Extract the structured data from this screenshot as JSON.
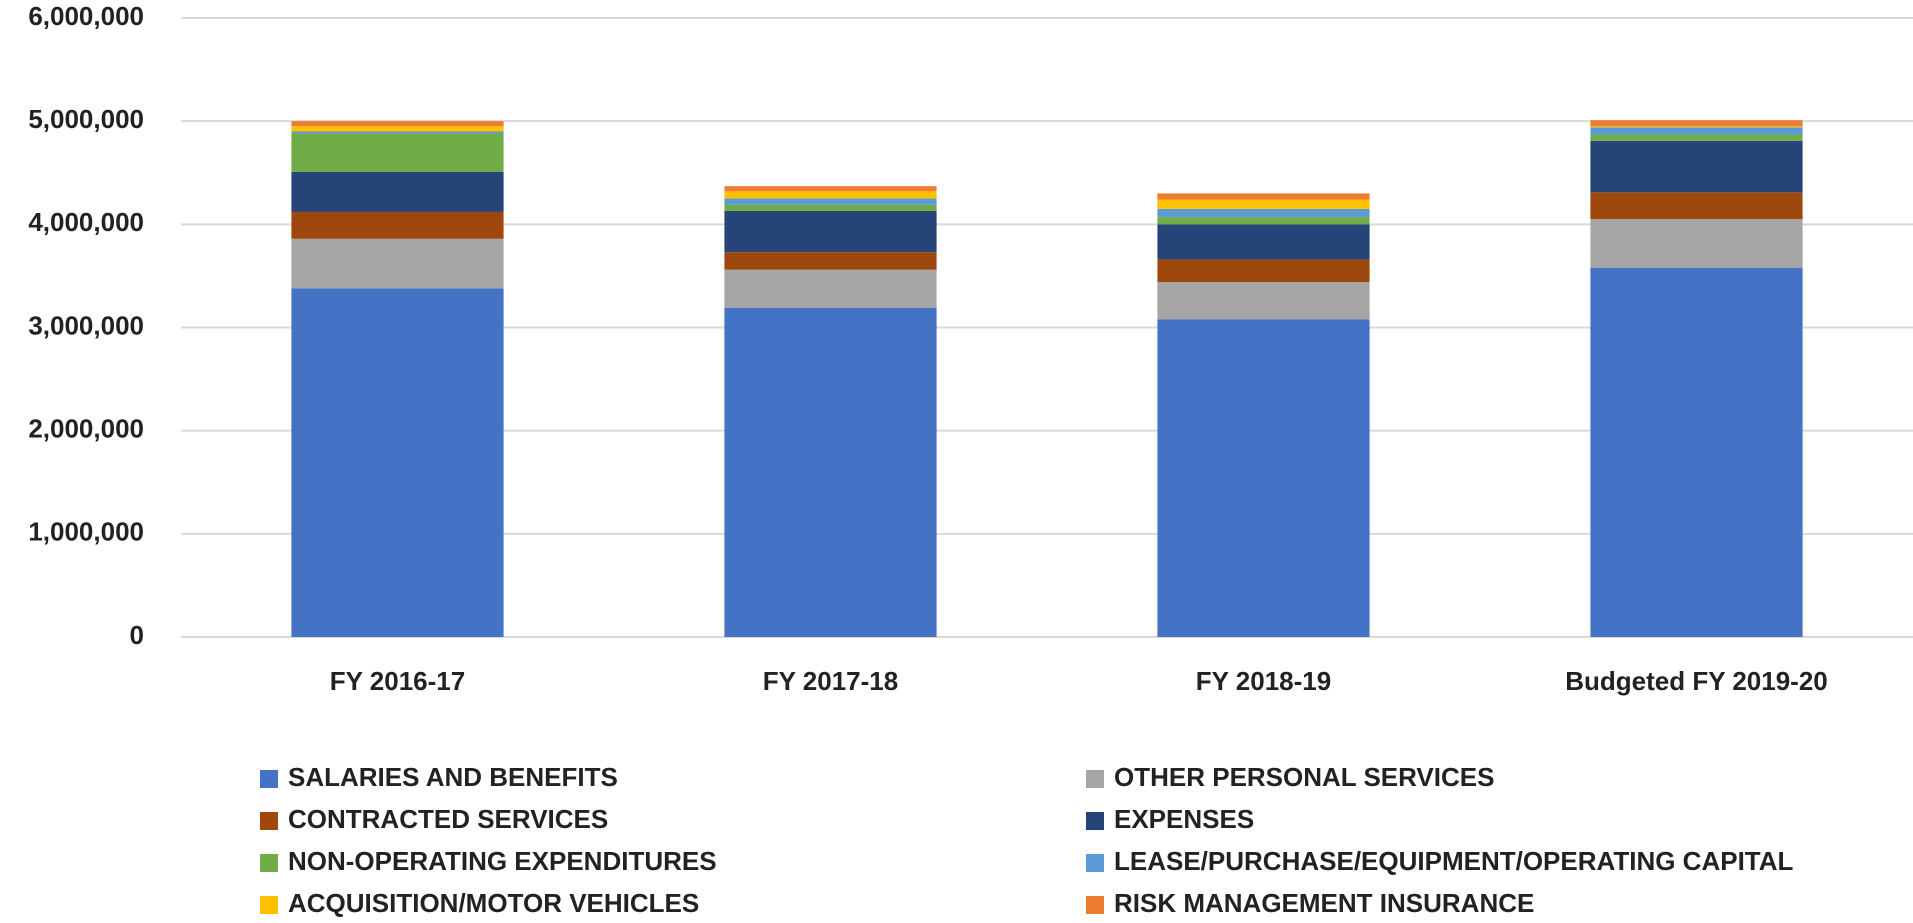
{
  "chart_data": {
    "type": "stacked_bar",
    "categories": [
      "FY 2016-17",
      "FY 2017-18",
      "FY 2018-19",
      "Budgeted FY 2019-20"
    ],
    "series": [
      {
        "name": "SALARIES AND BENEFITS",
        "color": "#4472c4",
        "values": [
          3380000,
          3190000,
          3080000,
          3580000
        ]
      },
      {
        "name": "OTHER PERSONAL SERVICES",
        "color": "#a5a5a5",
        "values": [
          480000,
          370000,
          360000,
          470000
        ]
      },
      {
        "name": "CONTRACTED SERVICES",
        "color": "#9e480e",
        "values": [
          260000,
          170000,
          220000,
          260000
        ]
      },
      {
        "name": "EXPENSES",
        "color": "#264478",
        "values": [
          390000,
          400000,
          340000,
          500000
        ]
      },
      {
        "name": "NON-OPERATING EXPENDITURES",
        "color": "#70ad47",
        "values": [
          370000,
          60000,
          70000,
          60000
        ]
      },
      {
        "name": "LEASE/PURCHASE/EQUIPMENT/OPERATING CAPITAL",
        "color": "#5b9bd5",
        "values": [
          20000,
          60000,
          80000,
          70000
        ]
      },
      {
        "name": "ACQUISITION/MOTOR VEHICLES",
        "color": "#ffc000",
        "values": [
          50000,
          70000,
          90000,
          10000
        ]
      },
      {
        "name": "RISK MANAGEMENT INSURANCE",
        "color": "#ed7d31",
        "values": [
          50000,
          50000,
          60000,
          60000
        ]
      }
    ],
    "ylim": [
      0,
      6000000
    ],
    "yticks": [
      0,
      {
        "value": 1000000,
        "label": "1,000,000"
      },
      {
        "value": 2000000,
        "label": "2,000,000"
      },
      {
        "value": 3000000,
        "label": "3,000,000"
      },
      {
        "value": 4000000,
        "label": "4,000,000"
      },
      {
        "value": 5000000,
        "label": "5,000,000"
      },
      {
        "value": 6000000,
        "label": "6,000,000"
      }
    ],
    "grid": true,
    "legend": "bottom"
  }
}
